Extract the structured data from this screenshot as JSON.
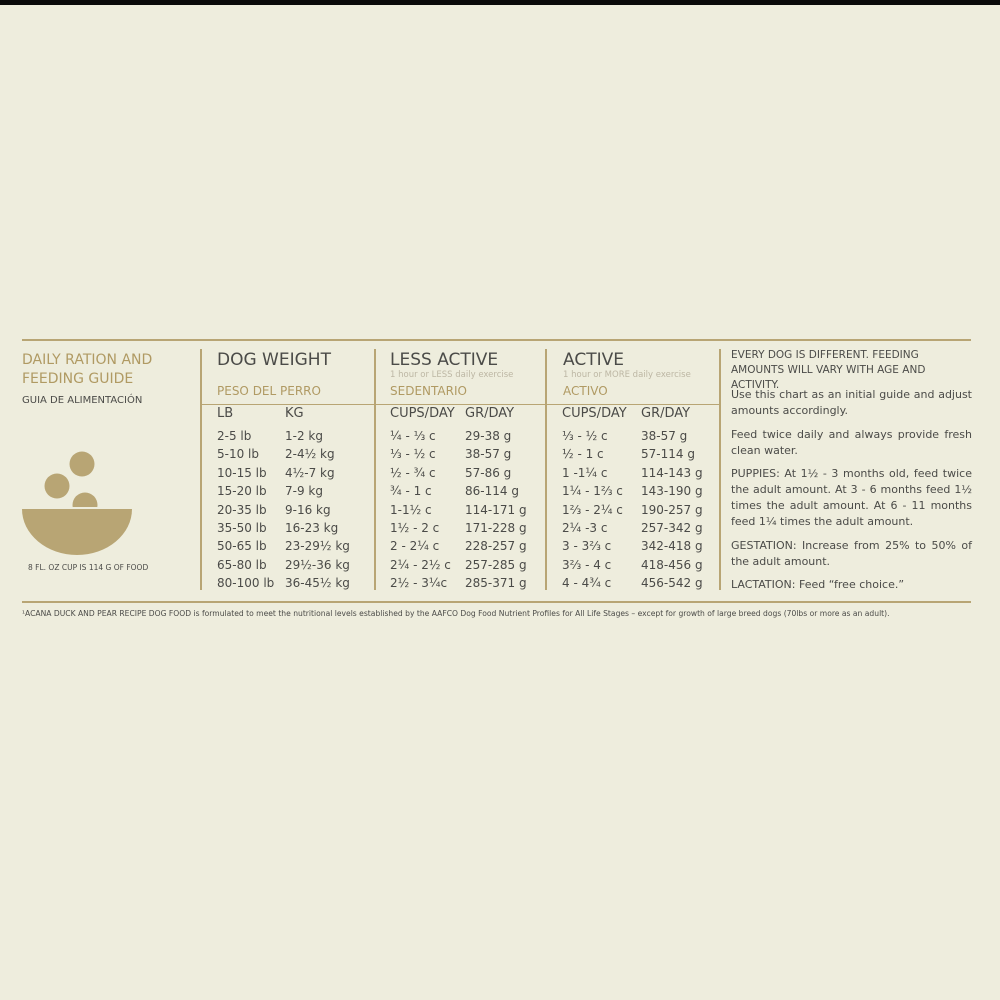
{
  "left": {
    "title": "DAILY RATION AND FEEDING GUIDE",
    "subtitle": "GUIA DE ALIMENTACIÓN",
    "cup_note": "8 FL. OZ CUP IS 114 G OF FOOD"
  },
  "table": {
    "groups": [
      {
        "title": "DOG WEIGHT",
        "spanish": "PESO DEL PERRO"
      },
      {
        "title": "LESS ACTIVE",
        "note": "1 hour or LESS daily exercise",
        "spanish": "SEDENTARIO"
      },
      {
        "title": "ACTIVE",
        "note": "1 hour or MORE daily exercise",
        "spanish": "ACTIVO"
      }
    ],
    "headers": [
      "LB",
      "KG",
      "CUPS/DAY",
      "GR/DAY",
      "CUPS/DAY",
      "GR/DAY"
    ],
    "rows": [
      [
        "2-5 lb",
        "1-2 kg",
        "¼ - ⅓ c",
        "29-38 g",
        "⅓ - ½ c",
        "38-57 g"
      ],
      [
        "5-10 lb",
        "2-4½ kg",
        "⅓ - ½ c",
        "38-57 g",
        "½ - 1 c",
        "57-114 g"
      ],
      [
        "10-15 lb",
        "4½-7 kg",
        "½ - ¾ c",
        "57-86 g",
        "1 -1¼ c",
        "114-143 g"
      ],
      [
        "15-20 lb",
        "7-9 kg",
        "¾ - 1 c",
        "86-114 g",
        "1¼ - 1⅔ c",
        "143-190 g"
      ],
      [
        "20-35 lb",
        "9-16 kg",
        "1-1½ c",
        "114-171 g",
        "1⅔ - 2¼ c",
        "190-257 g"
      ],
      [
        "35-50 lb",
        "16-23 kg",
        "1½ - 2 c",
        "171-228 g",
        "2¼ -3 c",
        "257-342 g"
      ],
      [
        "50-65 lb",
        "23-29½ kg",
        "2 - 2¼ c",
        "228-257 g",
        "3 - 3⅔ c",
        "342-418 g"
      ],
      [
        "65-80 lb",
        "29½-36 kg",
        "2¼ - 2½ c",
        "257-285 g",
        "3⅔ - 4 c",
        "418-456 g"
      ],
      [
        "80-100 lb",
        "36-45½ kg",
        "2½ - 3¼c",
        "285-371 g",
        "4 - 4¾ c",
        "456-542 g"
      ]
    ]
  },
  "notes": [
    "EVERY DOG IS DIFFERENT. FEEDING AMOUNTS WILL VARY WITH AGE AND ACTIVITY.",
    "Use this chart as an initial guide and adjust amounts accordingly.",
    "Feed twice daily and always provide fresh clean water.",
    "PUPPIES: At 1½ - 3 months old, feed twice the adult amount. At 3 - 6 months feed 1½ times the adult amount. At 6 - 11 months feed 1¼ times the adult amount.",
    "GESTATION: Increase from 25% to 50% of the adult amount.",
    "LACTATION: Feed “free choice.”"
  ],
  "footnote": "¹ACANA DUCK AND PEAR RECIPE DOG FOOD is formulated to meet the nutritional levels established by the AAFCO Dog Food Nutrient Profiles for All Life Stages – except for growth of large breed dogs (70lbs or more as an adult)."
}
